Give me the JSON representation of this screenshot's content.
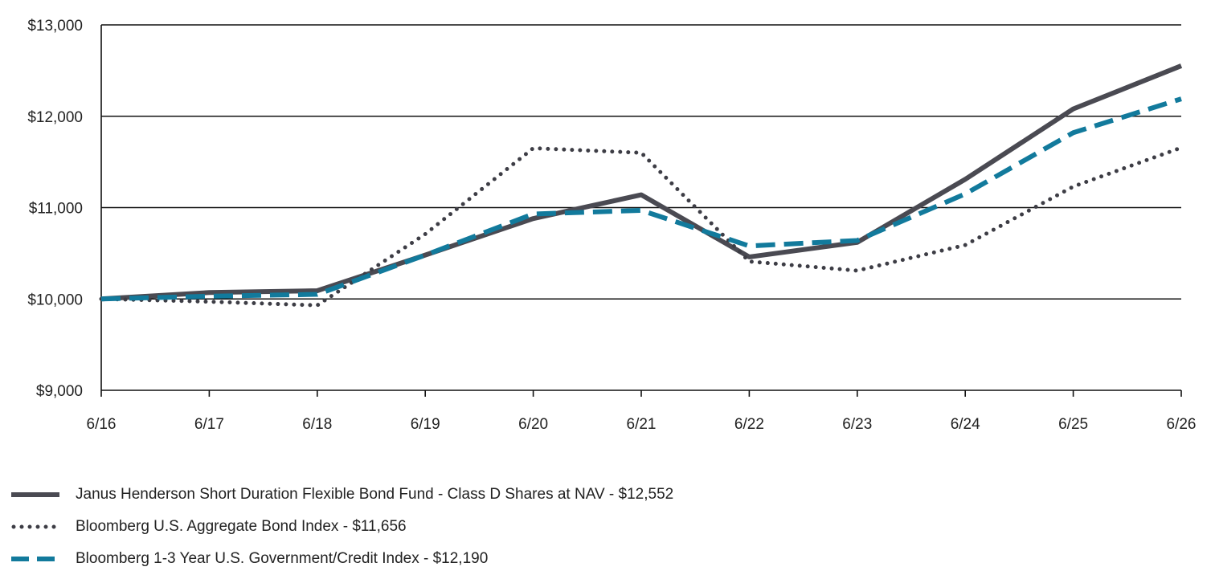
{
  "chart_data": {
    "type": "line",
    "title": "",
    "xlabel": "",
    "ylabel": "",
    "categories": [
      "6/16",
      "6/17",
      "6/18",
      "6/19",
      "6/20",
      "6/21",
      "6/22",
      "6/23",
      "6/24",
      "6/25",
      "6/26"
    ],
    "y_ticks": [
      13000,
      12000,
      11000,
      10000,
      9000
    ],
    "y_tick_labels": [
      "$13,000",
      "$12,000",
      "$11,000",
      "$10,000",
      "$9,000"
    ],
    "ylim": [
      9000,
      13000
    ],
    "grid": "horizontal",
    "legend_position": "bottom-left",
    "series": [
      {
        "name": "Janus Henderson Short Duration Flexible Bond Fund - Class D Shares at NAV - $12,552",
        "style": "solid",
        "color": "#4a4a52",
        "values": [
          10000,
          10070,
          10090,
          10480,
          10880,
          11140,
          10460,
          10620,
          11310,
          12080,
          12552
        ]
      },
      {
        "name": "Bloomberg U.S. Aggregate Bond Index - $11,656",
        "style": "dotted",
        "color": "#3d3d45",
        "values": [
          10000,
          9970,
          9930,
          10710,
          11650,
          11600,
          10410,
          10310,
          10590,
          11230,
          11656
        ]
      },
      {
        "name": "Bloomberg 1-3 Year U.S. Government/Credit Index - $12,190",
        "style": "dashed",
        "color": "#127a9c",
        "values": [
          10000,
          10030,
          10050,
          10480,
          10930,
          10970,
          10580,
          10640,
          11150,
          11820,
          12190
        ]
      }
    ]
  }
}
